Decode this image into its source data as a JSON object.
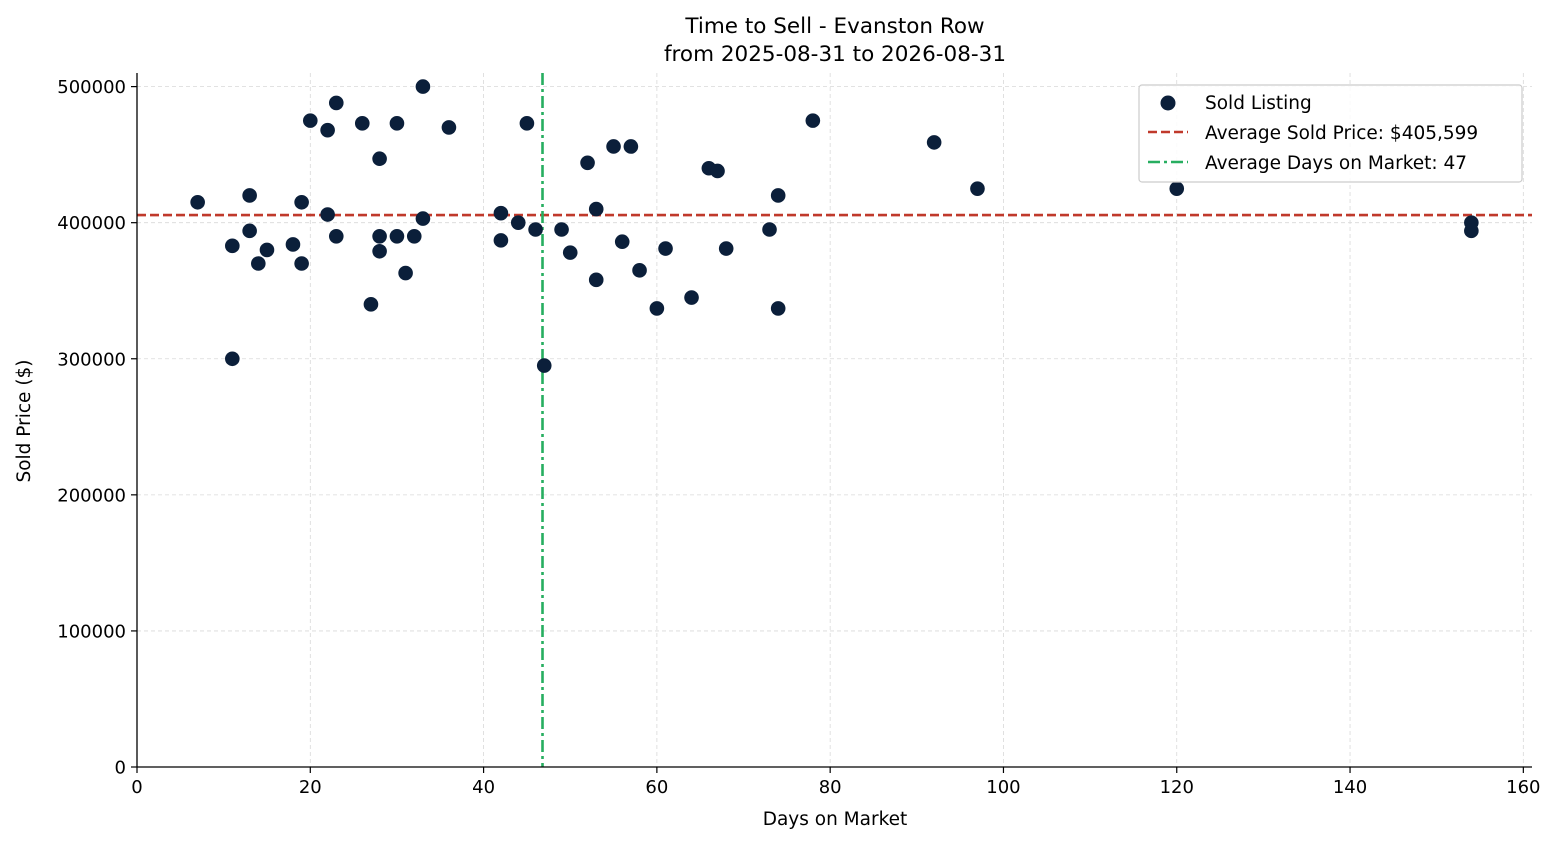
{
  "chart_data": {
    "type": "scatter",
    "title": "Time to Sell - Evanston Row",
    "subtitle": "from 2025-08-31 to 2026-08-31",
    "xlabel": "Days on Market",
    "ylabel": "Sold Price ($)",
    "xlim": [
      0,
      161
    ],
    "ylim": [
      0,
      510000
    ],
    "xticks": [
      0,
      20,
      40,
      60,
      80,
      100,
      120,
      140,
      160
    ],
    "xtick_labels": [
      "0",
      "20",
      "40",
      "60",
      "80",
      "100",
      "120",
      "140",
      "160"
    ],
    "yticks": [
      0,
      100000,
      200000,
      300000,
      400000,
      500000
    ],
    "ytick_labels": [
      "0",
      "100000",
      "200000",
      "300000",
      "400000",
      "500000"
    ],
    "grid": true,
    "legend_position": "top-right",
    "series": [
      {
        "name": "Sold Listing",
        "color": "#0b1f3a",
        "points": [
          [
            7,
            415000
          ],
          [
            11,
            383000
          ],
          [
            11,
            300000
          ],
          [
            13,
            420000
          ],
          [
            13,
            394000
          ],
          [
            14,
            370000
          ],
          [
            15,
            380000
          ],
          [
            18,
            384000
          ],
          [
            19,
            415000
          ],
          [
            19,
            370000
          ],
          [
            20,
            475000
          ],
          [
            22,
            468000
          ],
          [
            22,
            406000
          ],
          [
            23,
            488000
          ],
          [
            23,
            390000
          ],
          [
            26,
            473000
          ],
          [
            27,
            340000
          ],
          [
            28,
            447000
          ],
          [
            28,
            390000
          ],
          [
            28,
            379000
          ],
          [
            30,
            473000
          ],
          [
            30,
            390000
          ],
          [
            31,
            363000
          ],
          [
            32,
            390000
          ],
          [
            33,
            500000
          ],
          [
            33,
            403000
          ],
          [
            36,
            470000
          ],
          [
            42,
            407000
          ],
          [
            42,
            387000
          ],
          [
            44,
            400000
          ],
          [
            45,
            473000
          ],
          [
            46,
            395000
          ],
          [
            47,
            295000
          ],
          [
            49,
            395000
          ],
          [
            50,
            378000
          ],
          [
            52,
            444000
          ],
          [
            53,
            410000
          ],
          [
            53,
            358000
          ],
          [
            55,
            456000
          ],
          [
            56,
            386000
          ],
          [
            57,
            456000
          ],
          [
            58,
            365000
          ],
          [
            60,
            337000
          ],
          [
            61,
            381000
          ],
          [
            64,
            345000
          ],
          [
            66,
            440000
          ],
          [
            67,
            438000
          ],
          [
            68,
            381000
          ],
          [
            73,
            395000
          ],
          [
            74,
            420000
          ],
          [
            74,
            337000
          ],
          [
            78,
            475000
          ],
          [
            92,
            459000
          ],
          [
            97,
            425000
          ],
          [
            120,
            425000
          ],
          [
            154,
            400000
          ],
          [
            154,
            394000
          ]
        ]
      }
    ],
    "reference_lines": [
      {
        "name": "Average Sold Price: $405,599",
        "orientation": "horizontal",
        "value": 405599,
        "color": "#c0392b",
        "style": "dashed"
      },
      {
        "name": "Average Days on Market: 47",
        "orientation": "vertical",
        "value": 46.8,
        "color": "#27ae60",
        "style": "dashdot"
      }
    ],
    "legend": [
      "Sold Listing",
      "Average Sold Price: $405,599",
      "Average Days on Market: 47"
    ]
  }
}
